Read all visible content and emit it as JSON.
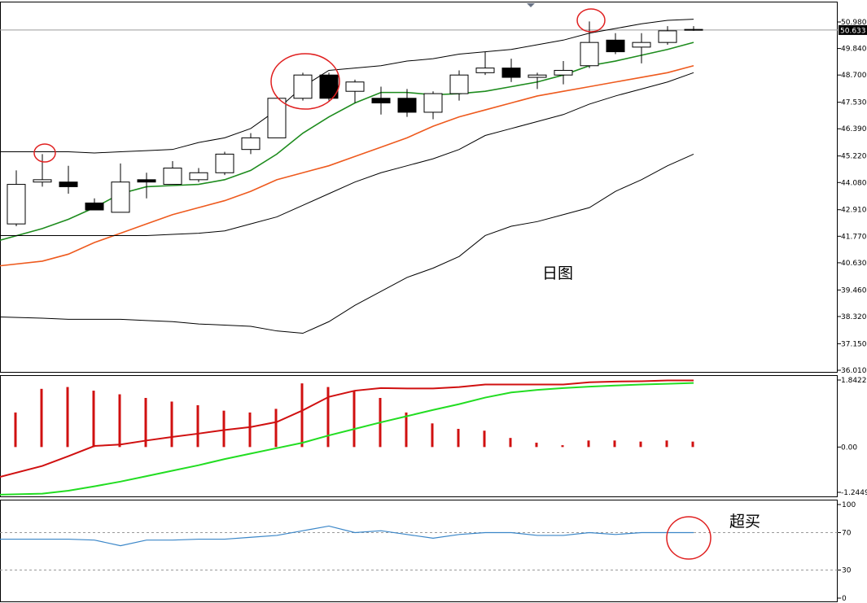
{
  "chart_data": [
    {
      "type": "candlestick",
      "panel": "price",
      "title": "",
      "annotation": "日图",
      "ylim": [
        36.01,
        51.1
      ],
      "y_ticks": [
        "50.980",
        "49.840",
        "48.700",
        "47.530",
        "46.390",
        "45.220",
        "44.080",
        "42.910",
        "41.770",
        "40.630",
        "39.460",
        "38.320",
        "37.150",
        "36.010"
      ],
      "current_price_label": "50.633",
      "current_price": 50.633,
      "grid": false,
      "colors": {
        "up_fill": "#ffffff",
        "down_fill": "#000000",
        "ma_short": "#1e8c1e",
        "ma_long": "#ee5a1e",
        "bands": "#000000",
        "highlight": "#e02020"
      },
      "candles": [
        {
          "o": 42.3,
          "h": 44.6,
          "l": 42.2,
          "c": 44.0
        },
        {
          "o": 44.1,
          "h": 45.3,
          "l": 43.9,
          "c": 44.2
        },
        {
          "o": 44.1,
          "h": 44.8,
          "l": 43.6,
          "c": 43.9
        },
        {
          "o": 43.2,
          "h": 43.4,
          "l": 42.9,
          "c": 42.9
        },
        {
          "o": 42.8,
          "h": 44.9,
          "l": 42.8,
          "c": 44.1
        },
        {
          "o": 44.2,
          "h": 44.5,
          "l": 43.4,
          "c": 44.1
        },
        {
          "o": 44.0,
          "h": 45.0,
          "l": 44.0,
          "c": 44.7
        },
        {
          "o": 44.2,
          "h": 44.7,
          "l": 44.1,
          "c": 44.5
        },
        {
          "o": 44.5,
          "h": 45.4,
          "l": 44.4,
          "c": 45.3
        },
        {
          "o": 45.5,
          "h": 46.2,
          "l": 45.3,
          "c": 46.0
        },
        {
          "o": 46.0,
          "h": 47.7,
          "l": 46.0,
          "c": 47.7
        },
        {
          "o": 47.7,
          "h": 48.8,
          "l": 47.6,
          "c": 48.7
        },
        {
          "o": 48.7,
          "h": 48.8,
          "l": 47.6,
          "c": 47.7
        },
        {
          "o": 48.0,
          "h": 48.5,
          "l": 47.5,
          "c": 48.4
        },
        {
          "o": 47.7,
          "h": 48.2,
          "l": 47.0,
          "c": 47.5
        },
        {
          "o": 47.7,
          "h": 48.1,
          "l": 46.9,
          "c": 47.1
        },
        {
          "o": 47.1,
          "h": 48.0,
          "l": 46.8,
          "c": 47.9
        },
        {
          "o": 47.9,
          "h": 48.9,
          "l": 47.6,
          "c": 48.7
        },
        {
          "o": 48.8,
          "h": 49.7,
          "l": 48.7,
          "c": 49.0
        },
        {
          "o": 49.0,
          "h": 49.4,
          "l": 48.4,
          "c": 48.6
        },
        {
          "o": 48.6,
          "h": 48.8,
          "l": 48.1,
          "c": 48.7
        },
        {
          "o": 48.7,
          "h": 49.3,
          "l": 48.3,
          "c": 48.9
        },
        {
          "o": 49.1,
          "h": 51.0,
          "l": 49.0,
          "c": 50.1
        },
        {
          "o": 50.2,
          "h": 50.5,
          "l": 49.6,
          "c": 49.7
        },
        {
          "o": 49.9,
          "h": 50.5,
          "l": 49.2,
          "c": 50.1
        },
        {
          "o": 50.1,
          "h": 50.8,
          "l": 50.0,
          "c": 50.6
        },
        {
          "o": 50.63,
          "h": 50.8,
          "l": 50.6,
          "c": 50.66
        }
      ],
      "series": [
        {
          "values": [
            41.6,
            42.1,
            42.5,
            43.0,
            43.6,
            43.9,
            43.95,
            44.0,
            44.2,
            44.6,
            45.3,
            46.2,
            46.9,
            47.5,
            47.95,
            47.95,
            47.85,
            47.9,
            48.0,
            48.2,
            48.4,
            48.7,
            49.1,
            49.3,
            49.55,
            49.8,
            50.1
          ]
        },
        {
          "values": [
            40.5,
            40.7,
            41.0,
            41.5,
            41.9,
            42.3,
            42.7,
            43.0,
            43.3,
            43.7,
            44.2,
            44.5,
            44.8,
            45.2,
            45.6,
            46.0,
            46.5,
            46.9,
            47.2,
            47.5,
            47.8,
            48.0,
            48.2,
            48.4,
            48.6,
            48.8,
            49.1
          ]
        },
        {
          "values": [
            45.4,
            45.4,
            45.4,
            45.35,
            45.4,
            45.45,
            45.5,
            45.8,
            46.0,
            46.4,
            47.2,
            48.2,
            48.9,
            49.0,
            49.1,
            49.3,
            49.4,
            49.6,
            49.7,
            49.8,
            50.0,
            50.2,
            50.5,
            50.7,
            50.9,
            51.05,
            51.1
          ]
        },
        {
          "values": [
            41.8,
            41.8,
            41.8,
            41.8,
            41.8,
            41.8,
            41.85,
            41.9,
            42.0,
            42.3,
            42.6,
            43.1,
            43.6,
            44.1,
            44.5,
            44.8,
            45.1,
            45.5,
            46.1,
            46.4,
            46.7,
            47.0,
            47.45,
            47.8,
            48.1,
            48.4,
            48.8
          ]
        },
        {
          "values": [
            38.3,
            38.25,
            38.2,
            38.2,
            38.2,
            38.15,
            38.1,
            38.0,
            37.95,
            37.9,
            37.7,
            37.6,
            38.1,
            38.8,
            39.4,
            40.0,
            40.4,
            40.9,
            41.8,
            42.2,
            42.4,
            42.7,
            43.0,
            43.7,
            44.2,
            44.8,
            45.3
          ]
        }
      ]
    },
    {
      "type": "histogram-lines",
      "panel": "macd",
      "ylim": [
        -1.24495,
        1.84221
      ],
      "y_ticks": [
        "1.84221",
        "0.00",
        "-1.24495"
      ],
      "colors": {
        "histogram": "#d01010",
        "line_red": "#d01010",
        "line_green": "#22dd22"
      },
      "histogram": [
        0.95,
        1.6,
        1.65,
        1.55,
        1.45,
        1.35,
        1.25,
        1.15,
        1.0,
        0.95,
        1.05,
        1.75,
        1.65,
        1.55,
        1.35,
        0.95,
        0.65,
        0.5,
        0.45,
        0.25,
        0.12,
        0.05,
        0.18,
        0.18,
        0.15,
        0.18,
        0.15
      ],
      "series": [
        {
          "values": [
            -0.82,
            -0.52,
            -0.25,
            0.03,
            0.07,
            0.18,
            0.28,
            0.37,
            0.47,
            0.55,
            0.69,
            1.01,
            1.38,
            1.55,
            1.62,
            1.61,
            1.61,
            1.65,
            1.72,
            1.72,
            1.72,
            1.72,
            1.78,
            1.8,
            1.81,
            1.83,
            1.83
          ]
        },
        {
          "values": [
            -1.31,
            -1.28,
            -1.2,
            -1.08,
            -0.95,
            -0.8,
            -0.65,
            -0.5,
            -0.33,
            -0.18,
            -0.03,
            0.12,
            0.32,
            0.5,
            0.68,
            0.85,
            1.02,
            1.18,
            1.36,
            1.5,
            1.57,
            1.62,
            1.66,
            1.69,
            1.72,
            1.74,
            1.76
          ]
        }
      ]
    },
    {
      "type": "line",
      "panel": "oscillator",
      "annotation": "超买",
      "ylim": [
        0,
        100
      ],
      "y_ticks": [
        "100",
        "70",
        "30",
        "0"
      ],
      "levels": [
        70,
        30
      ],
      "colors": {
        "line": "#3a86c8",
        "level": "#999999"
      },
      "series": [
        {
          "values": [
            63,
            63,
            63,
            62,
            56,
            62,
            62,
            63,
            63,
            65,
            67,
            72,
            77,
            70,
            72,
            68,
            64,
            68,
            70,
            70,
            67,
            67,
            70,
            68,
            70,
            70,
            70
          ]
        }
      ]
    }
  ]
}
